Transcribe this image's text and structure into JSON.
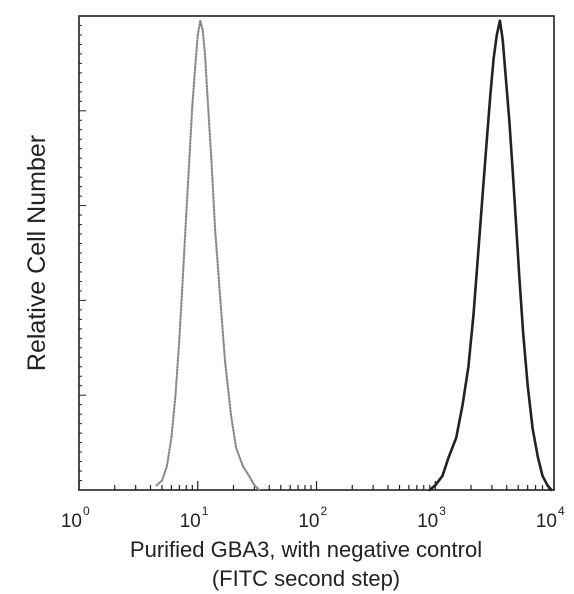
{
  "chart_data": {
    "type": "line",
    "title": "",
    "xlabel_line1": "Purified GBA3, with negative control",
    "xlabel_line2": "(FITC second step)",
    "ylabel": "Relative Cell Number",
    "x_scale": "log",
    "xlim": [
      1,
      10000
    ],
    "ylim": [
      0,
      100
    ],
    "x_ticks": [
      {
        "base": "10",
        "exp": "0"
      },
      {
        "base": "10",
        "exp": "1"
      },
      {
        "base": "10",
        "exp": "2"
      },
      {
        "base": "10",
        "exp": "3"
      },
      {
        "base": "10",
        "exp": "4"
      }
    ],
    "grid": false,
    "legend": "none",
    "series": [
      {
        "color": "#8a8a8a",
        "style": "dotted",
        "x": [
          4.5,
          5.0,
          5.5,
          6.0,
          6.5,
          7.0,
          7.5,
          8.0,
          8.5,
          9.0,
          9.5,
          10.0,
          10.5,
          11.0,
          11.5,
          12.0,
          13.0,
          14.0,
          15.5,
          17.0,
          19.0,
          21.0,
          24.0,
          27.0,
          30.0,
          33.0
        ],
        "y": [
          1,
          2,
          5,
          11,
          20,
          32,
          45,
          58,
          70,
          81,
          89,
          96,
          99,
          97,
          92,
          84,
          70,
          55,
          40,
          27,
          16,
          9,
          5,
          3,
          1,
          0
        ]
      },
      {
        "color": "#222222",
        "style": "solid",
        "x": [
          900,
          1000,
          1150,
          1300,
          1500,
          1700,
          1900,
          2100,
          2300,
          2500,
          2700,
          2900,
          3100,
          3300,
          3500,
          3700,
          3900,
          4200,
          4500,
          4800,
          5100,
          5500,
          6000,
          6600,
          7300,
          8000,
          8800,
          9500
        ],
        "y": [
          0,
          1,
          3,
          7,
          11,
          18,
          26,
          37,
          50,
          62,
          73,
          83,
          91,
          96,
          99,
          95,
          88,
          78,
          67,
          56,
          45,
          33,
          22,
          13,
          7,
          3,
          1,
          0
        ]
      }
    ]
  }
}
